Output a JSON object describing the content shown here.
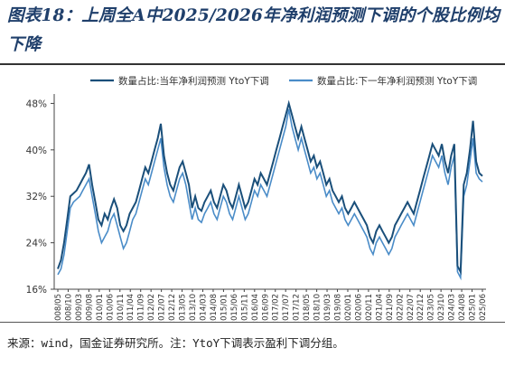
{
  "title": "图表18：上周全A中2025/2026年净利润预测下调的个股比例均下降",
  "source": "来源：wind，国金证券研究所。注：YtoY下调表示盈利下调分组。",
  "colors": {
    "series_current": "#1a4f7a",
    "series_next": "#4a8cc8"
  },
  "chart_data": {
    "type": "line",
    "ylim": [
      16,
      49
    ],
    "yticks": [
      16,
      24,
      32,
      40,
      48
    ],
    "ytick_labels": [
      "16%",
      "24%",
      "32%",
      "40%",
      "48%"
    ],
    "xtick_labels": [
      "2008/05",
      "2008/10",
      "2009/03",
      "2009/08",
      "2010/01",
      "2010/06",
      "2010/11",
      "2011/04",
      "2011/09",
      "2012/02",
      "2012/07",
      "2012/12",
      "2013/05",
      "2013/10",
      "2014/03",
      "2014/08",
      "2015/01",
      "2015/06",
      "2015/11",
      "2016/04",
      "2016/09",
      "2017/02",
      "2017/07",
      "2017/12",
      "2018/05",
      "2018/10",
      "2019/03",
      "2019/08",
      "2020/01",
      "2020/06",
      "2020/11",
      "2021/04",
      "2021/09",
      "2022/02",
      "2022/07",
      "2022/12",
      "2023/05",
      "2023/10",
      "2024/03",
      "2024/08",
      "2025/01",
      "2025/06"
    ],
    "legend_position": "top",
    "x_start": "2008/05",
    "x_end": "2025/06",
    "series": [
      {
        "name": "数量占比:当年净利润预测 YtoY下调",
        "points": [
          [
            0,
            19.5
          ],
          [
            1,
            21
          ],
          [
            2,
            24
          ],
          [
            3,
            28
          ],
          [
            4,
            32
          ],
          [
            5,
            32.5
          ],
          [
            6,
            33
          ],
          [
            7,
            34
          ],
          [
            8,
            35
          ],
          [
            9,
            36
          ],
          [
            10,
            37.5
          ],
          [
            11,
            34
          ],
          [
            12,
            31
          ],
          [
            13,
            28
          ],
          [
            14,
            27
          ],
          [
            15,
            29
          ],
          [
            16,
            28
          ],
          [
            17,
            30
          ],
          [
            18,
            31.5
          ],
          [
            19,
            30
          ],
          [
            20,
            27
          ],
          [
            21,
            26
          ],
          [
            22,
            27
          ],
          [
            23,
            29
          ],
          [
            24,
            30
          ],
          [
            25,
            31
          ],
          [
            26,
            33
          ],
          [
            27,
            35
          ],
          [
            28,
            37
          ],
          [
            29,
            36
          ],
          [
            30,
            38
          ],
          [
            31,
            40
          ],
          [
            32,
            42
          ],
          [
            33,
            44.5
          ],
          [
            34,
            39
          ],
          [
            35,
            36
          ],
          [
            36,
            34
          ],
          [
            37,
            33
          ],
          [
            38,
            35
          ],
          [
            39,
            37
          ],
          [
            40,
            38
          ],
          [
            41,
            36
          ],
          [
            42,
            34
          ],
          [
            43,
            30
          ],
          [
            44,
            32
          ],
          [
            45,
            30
          ],
          [
            46,
            29.5
          ],
          [
            47,
            31
          ],
          [
            48,
            32
          ],
          [
            49,
            33
          ],
          [
            50,
            31
          ],
          [
            51,
            30
          ],
          [
            52,
            32
          ],
          [
            53,
            34
          ],
          [
            54,
            33
          ],
          [
            55,
            31
          ],
          [
            56,
            30
          ],
          [
            57,
            32
          ],
          [
            58,
            34
          ],
          [
            59,
            32
          ],
          [
            60,
            30
          ],
          [
            61,
            31
          ],
          [
            62,
            33
          ],
          [
            63,
            35
          ],
          [
            64,
            34
          ],
          [
            65,
            36
          ],
          [
            66,
            35
          ],
          [
            67,
            34
          ],
          [
            68,
            36
          ],
          [
            69,
            38
          ],
          [
            70,
            40
          ],
          [
            71,
            42
          ],
          [
            72,
            44
          ],
          [
            73,
            46
          ],
          [
            74,
            48
          ],
          [
            75,
            46
          ],
          [
            76,
            44
          ],
          [
            77,
            42
          ],
          [
            78,
            44
          ],
          [
            79,
            42
          ],
          [
            80,
            40
          ],
          [
            81,
            38
          ],
          [
            82,
            39
          ],
          [
            83,
            37
          ],
          [
            84,
            38
          ],
          [
            85,
            36
          ],
          [
            86,
            34
          ],
          [
            87,
            35
          ],
          [
            88,
            33
          ],
          [
            89,
            32
          ],
          [
            90,
            31
          ],
          [
            91,
            32
          ],
          [
            92,
            30
          ],
          [
            93,
            29
          ],
          [
            94,
            30
          ],
          [
            95,
            31
          ],
          [
            96,
            30
          ],
          [
            97,
            29
          ],
          [
            98,
            28
          ],
          [
            99,
            27
          ],
          [
            100,
            25
          ],
          [
            101,
            24
          ],
          [
            102,
            26
          ],
          [
            103,
            27
          ],
          [
            104,
            26
          ],
          [
            105,
            25
          ],
          [
            106,
            24
          ],
          [
            107,
            25
          ],
          [
            108,
            27
          ],
          [
            109,
            28
          ],
          [
            110,
            29
          ],
          [
            111,
            30
          ],
          [
            112,
            31
          ],
          [
            113,
            30
          ],
          [
            114,
            29
          ],
          [
            115,
            31
          ],
          [
            116,
            33
          ],
          [
            117,
            35
          ],
          [
            118,
            37
          ],
          [
            119,
            39
          ],
          [
            120,
            41
          ],
          [
            121,
            40
          ],
          [
            122,
            39
          ],
          [
            123,
            41
          ],
          [
            124,
            38
          ],
          [
            125,
            36
          ],
          [
            126,
            39
          ],
          [
            127,
            41
          ],
          [
            128,
            20
          ],
          [
            129,
            19
          ],
          [
            130,
            34
          ],
          [
            131,
            36
          ],
          [
            132,
            40
          ],
          [
            133,
            45
          ],
          [
            134,
            38
          ],
          [
            135,
            36
          ],
          [
            136,
            35.5
          ]
        ]
      },
      {
        "name": "数量占比:下一年净利润预测 YtoY下调",
        "points": [
          [
            0,
            18.5
          ],
          [
            1,
            19.5
          ],
          [
            2,
            22
          ],
          [
            3,
            26
          ],
          [
            4,
            30
          ],
          [
            5,
            31
          ],
          [
            6,
            31.5
          ],
          [
            7,
            32
          ],
          [
            8,
            33
          ],
          [
            9,
            34
          ],
          [
            10,
            35
          ],
          [
            11,
            32
          ],
          [
            12,
            29
          ],
          [
            13,
            26
          ],
          [
            14,
            24
          ],
          [
            15,
            25
          ],
          [
            16,
            26
          ],
          [
            17,
            28
          ],
          [
            18,
            29
          ],
          [
            19,
            27
          ],
          [
            20,
            25
          ],
          [
            21,
            23
          ],
          [
            22,
            24
          ],
          [
            23,
            26
          ],
          [
            24,
            28
          ],
          [
            25,
            29
          ],
          [
            26,
            31
          ],
          [
            27,
            33
          ],
          [
            28,
            35
          ],
          [
            29,
            34
          ],
          [
            30,
            36
          ],
          [
            31,
            38
          ],
          [
            32,
            40
          ],
          [
            33,
            42
          ],
          [
            34,
            37
          ],
          [
            35,
            34
          ],
          [
            36,
            32
          ],
          [
            37,
            31
          ],
          [
            38,
            33
          ],
          [
            39,
            35
          ],
          [
            40,
            36
          ],
          [
            41,
            34
          ],
          [
            42,
            31
          ],
          [
            43,
            28
          ],
          [
            44,
            30
          ],
          [
            45,
            28
          ],
          [
            46,
            27.5
          ],
          [
            47,
            29
          ],
          [
            48,
            30
          ],
          [
            49,
            31
          ],
          [
            50,
            29
          ],
          [
            51,
            28
          ],
          [
            52,
            30
          ],
          [
            53,
            32
          ],
          [
            54,
            31
          ],
          [
            55,
            29
          ],
          [
            56,
            28
          ],
          [
            57,
            30
          ],
          [
            58,
            32
          ],
          [
            59,
            30
          ],
          [
            60,
            28
          ],
          [
            61,
            29
          ],
          [
            62,
            31
          ],
          [
            63,
            33
          ],
          [
            64,
            32
          ],
          [
            65,
            34
          ],
          [
            66,
            33
          ],
          [
            67,
            32
          ],
          [
            68,
            34
          ],
          [
            69,
            36
          ],
          [
            70,
            38
          ],
          [
            71,
            40
          ],
          [
            72,
            42
          ],
          [
            73,
            44
          ],
          [
            74,
            47
          ],
          [
            75,
            44
          ],
          [
            76,
            42
          ],
          [
            77,
            40
          ],
          [
            78,
            42
          ],
          [
            79,
            40
          ],
          [
            80,
            38
          ],
          [
            81,
            36
          ],
          [
            82,
            37
          ],
          [
            83,
            35
          ],
          [
            84,
            36
          ],
          [
            85,
            34
          ],
          [
            86,
            32
          ],
          [
            87,
            33
          ],
          [
            88,
            31
          ],
          [
            89,
            30
          ],
          [
            90,
            29
          ],
          [
            91,
            30
          ],
          [
            92,
            28
          ],
          [
            93,
            27
          ],
          [
            94,
            28
          ],
          [
            95,
            29
          ],
          [
            96,
            28
          ],
          [
            97,
            27
          ],
          [
            98,
            26
          ],
          [
            99,
            25
          ],
          [
            100,
            23
          ],
          [
            101,
            22
          ],
          [
            102,
            24
          ],
          [
            103,
            25
          ],
          [
            104,
            24
          ],
          [
            105,
            23
          ],
          [
            106,
            22
          ],
          [
            107,
            23
          ],
          [
            108,
            25
          ],
          [
            109,
            26
          ],
          [
            110,
            27
          ],
          [
            111,
            28
          ],
          [
            112,
            29
          ],
          [
            113,
            28
          ],
          [
            114,
            27
          ],
          [
            115,
            29
          ],
          [
            116,
            31
          ],
          [
            117,
            33
          ],
          [
            118,
            35
          ],
          [
            119,
            37
          ],
          [
            120,
            39
          ],
          [
            121,
            38
          ],
          [
            122,
            37
          ],
          [
            123,
            39
          ],
          [
            124,
            36
          ],
          [
            125,
            34
          ],
          [
            126,
            37
          ],
          [
            127,
            39
          ],
          [
            128,
            19
          ],
          [
            129,
            18
          ],
          [
            130,
            32
          ],
          [
            131,
            34
          ],
          [
            132,
            38
          ],
          [
            133,
            42
          ],
          [
            134,
            36
          ],
          [
            135,
            35
          ],
          [
            136,
            34.5
          ]
        ]
      }
    ]
  }
}
